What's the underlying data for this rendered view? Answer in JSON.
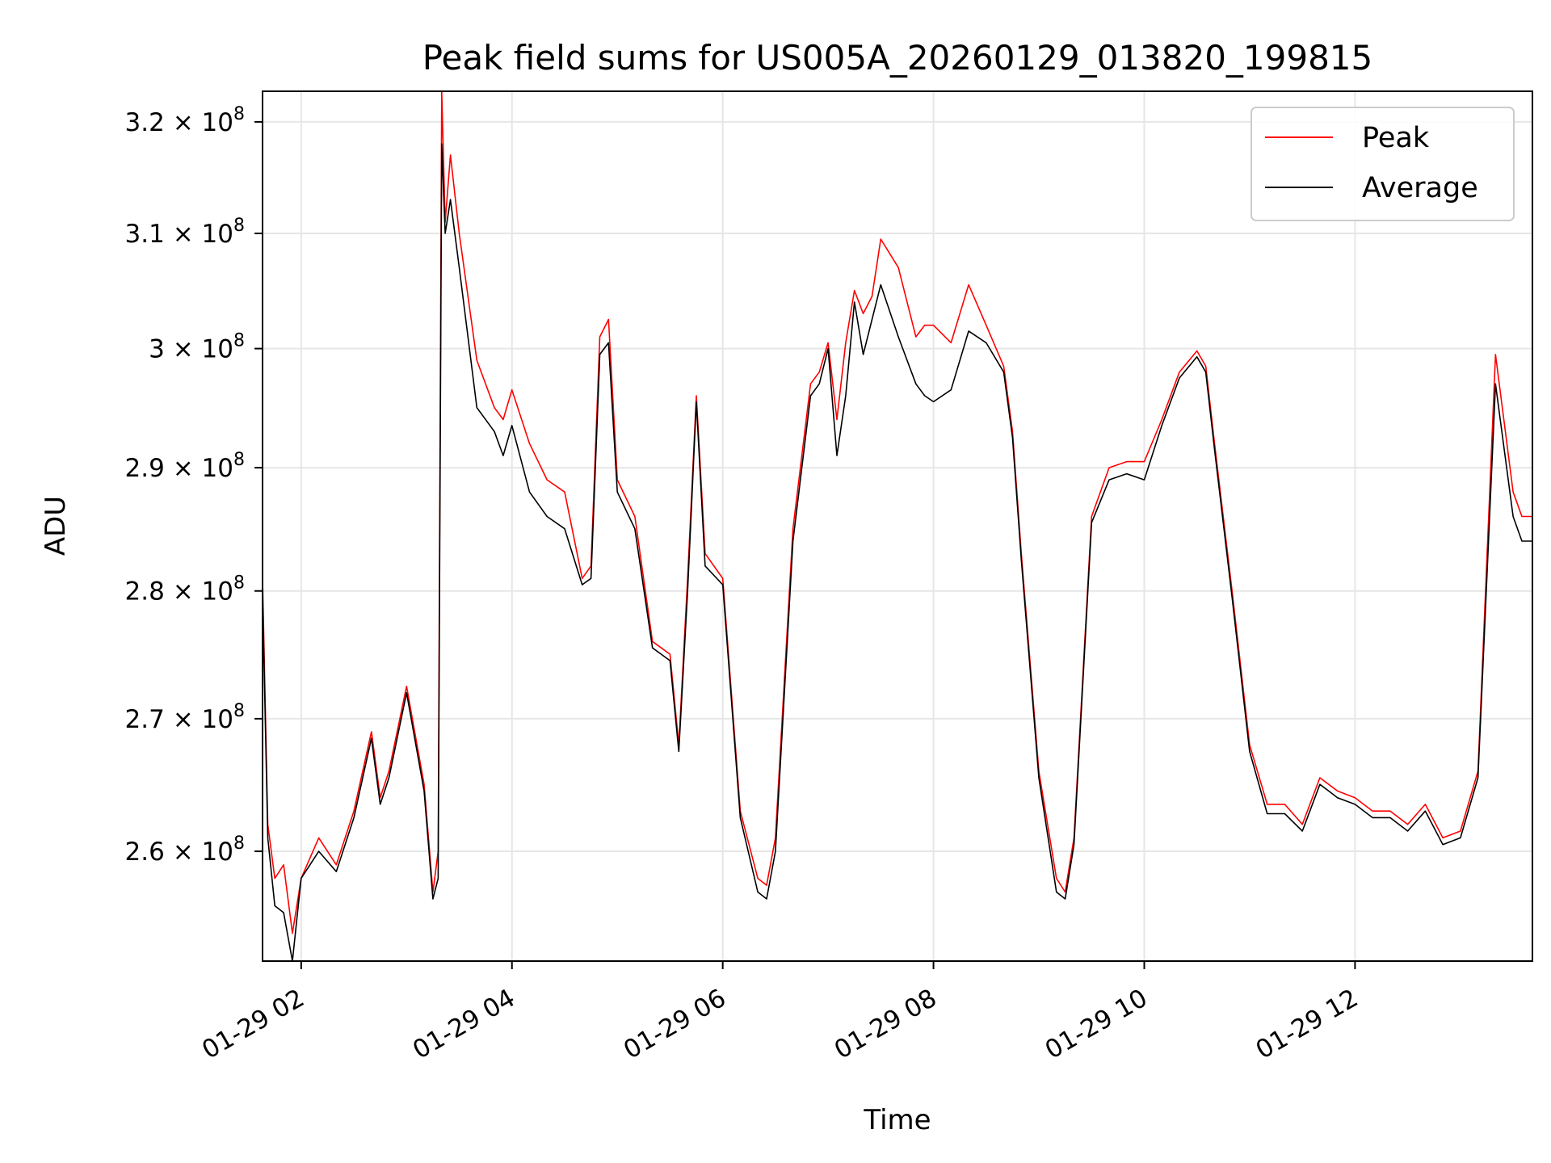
{
  "chart_data": {
    "type": "line",
    "title": "Peak field sums for US005A_20260129_013820_199815",
    "xlabel": "Time",
    "ylabel": "ADU",
    "y_scale": "log",
    "xlim": [
      "2026-01-29 01:38",
      "2026-01-29 13:41"
    ],
    "ylim": [
      252000000,
      322800000
    ],
    "grid": true,
    "legend_position": "top-right",
    "x_ticks": [
      {
        "value": "2026-01-29 02:00",
        "label": "01-29 02"
      },
      {
        "value": "2026-01-29 04:00",
        "label": "01-29 04"
      },
      {
        "value": "2026-01-29 06:00",
        "label": "01-29 06"
      },
      {
        "value": "2026-01-29 08:00",
        "label": "01-29 08"
      },
      {
        "value": "2026-01-29 10:00",
        "label": "01-29 10"
      },
      {
        "value": "2026-01-29 12:00",
        "label": "01-29 12"
      }
    ],
    "y_ticks": [
      {
        "value": 260000000,
        "mantissa": "2.6",
        "times": "×",
        "base": "10",
        "exp": "8"
      },
      {
        "value": 270000000,
        "mantissa": "2.7",
        "times": "×",
        "base": "10",
        "exp": "8"
      },
      {
        "value": 280000000,
        "mantissa": "2.8",
        "times": "×",
        "base": "10",
        "exp": "8"
      },
      {
        "value": 290000000,
        "mantissa": "2.9",
        "times": "×",
        "base": "10",
        "exp": "8"
      },
      {
        "value": 300000000,
        "mantissa": "3",
        "times": "×",
        "base": "10",
        "exp": "8"
      },
      {
        "value": 310000000,
        "mantissa": "3.1",
        "times": "×",
        "base": "10",
        "exp": "8"
      },
      {
        "value": 320000000,
        "mantissa": "3.2",
        "times": "×",
        "base": "10",
        "exp": "8"
      }
    ],
    "series": [
      {
        "name": "Peak",
        "color": "#ff0000",
        "x": [
          "2026-01-29 01:38",
          "2026-01-29 01:41",
          "2026-01-29 01:45",
          "2026-01-29 01:50",
          "2026-01-29 01:55",
          "2026-01-29 02:00",
          "2026-01-29 02:10",
          "2026-01-29 02:20",
          "2026-01-29 02:30",
          "2026-01-29 02:40",
          "2026-01-29 02:45",
          "2026-01-29 02:50",
          "2026-01-29 03:00",
          "2026-01-29 03:10",
          "2026-01-29 03:15",
          "2026-01-29 03:18",
          "2026-01-29 03:20",
          "2026-01-29 03:22",
          "2026-01-29 03:25",
          "2026-01-29 03:30",
          "2026-01-29 03:40",
          "2026-01-29 03:50",
          "2026-01-29 03:55",
          "2026-01-29 04:00",
          "2026-01-29 04:10",
          "2026-01-29 04:20",
          "2026-01-29 04:30",
          "2026-01-29 04:40",
          "2026-01-29 04:45",
          "2026-01-29 04:50",
          "2026-01-29 04:55",
          "2026-01-29 05:00",
          "2026-01-29 05:10",
          "2026-01-29 05:20",
          "2026-01-29 05:25",
          "2026-01-29 05:30",
          "2026-01-29 05:35",
          "2026-01-29 05:40",
          "2026-01-29 05:45",
          "2026-01-29 05:50",
          "2026-01-29 06:00",
          "2026-01-29 06:10",
          "2026-01-29 06:20",
          "2026-01-29 06:25",
          "2026-01-29 06:30",
          "2026-01-29 06:40",
          "2026-01-29 06:50",
          "2026-01-29 06:55",
          "2026-01-29 07:00",
          "2026-01-29 07:05",
          "2026-01-29 07:10",
          "2026-01-29 07:15",
          "2026-01-29 07:20",
          "2026-01-29 07:25",
          "2026-01-29 07:30",
          "2026-01-29 07:40",
          "2026-01-29 07:50",
          "2026-01-29 07:55",
          "2026-01-29 08:00",
          "2026-01-29 08:10",
          "2026-01-29 08:20",
          "2026-01-29 08:30",
          "2026-01-29 08:40",
          "2026-01-29 08:45",
          "2026-01-29 08:50",
          "2026-01-29 09:00",
          "2026-01-29 09:10",
          "2026-01-29 09:15",
          "2026-01-29 09:20",
          "2026-01-29 09:30",
          "2026-01-29 09:40",
          "2026-01-29 09:50",
          "2026-01-29 10:00",
          "2026-01-29 10:10",
          "2026-01-29 10:20",
          "2026-01-29 10:30",
          "2026-01-29 10:35",
          "2026-01-29 10:40",
          "2026-01-29 10:50",
          "2026-01-29 11:00",
          "2026-01-29 11:10",
          "2026-01-29 11:20",
          "2026-01-29 11:30",
          "2026-01-29 11:40",
          "2026-01-29 11:45",
          "2026-01-29 11:50",
          "2026-01-29 12:00",
          "2026-01-29 12:10",
          "2026-01-29 12:20",
          "2026-01-29 12:30",
          "2026-01-29 12:40",
          "2026-01-29 12:50",
          "2026-01-29 13:00",
          "2026-01-29 13:10",
          "2026-01-29 13:20",
          "2026-01-29 13:30",
          "2026-01-29 13:35",
          "2026-01-29 13:38",
          "2026-01-29 13:41"
        ],
        "y": [
          281000000,
          262000000,
          258000000,
          259000000,
          254000000,
          258000000,
          261000000,
          259000000,
          263000000,
          269000000,
          264000000,
          266000000,
          272500000,
          265000000,
          257000000,
          260000000,
          322800000,
          311000000,
          317000000,
          310000000,
          299000000,
          295000000,
          294000000,
          296500000,
          292000000,
          289000000,
          288000000,
          281000000,
          282000000,
          301000000,
          302500000,
          289000000,
          286000000,
          276000000,
          275500000,
          275000000,
          268000000,
          281000000,
          296000000,
          283000000,
          281000000,
          263000000,
          258000000,
          257500000,
          261000000,
          285000000,
          297000000,
          298000000,
          300500000,
          294000000,
          300500000,
          305000000,
          303000000,
          304500000,
          309500000,
          307000000,
          301000000,
          302000000,
          302000000,
          300500000,
          305500000,
          302000000,
          298500000,
          293000000,
          283000000,
          266000000,
          258000000,
          257000000,
          261000000,
          286000000,
          290000000,
          290500000,
          290500000,
          294000000,
          298000000,
          299800000,
          298500000,
          292000000,
          280000000,
          268000000,
          263500000,
          263500000,
          262000000,
          265500000,
          265000000,
          264500000,
          264000000,
          263000000,
          263000000,
          262000000,
          263500000,
          261000000,
          261500000,
          266000000,
          299500000,
          288000000,
          286000000,
          286000000,
          286000000
        ]
      },
      {
        "name": "Average",
        "color": "#000000",
        "x": [
          "2026-01-29 01:38",
          "2026-01-29 01:41",
          "2026-01-29 01:45",
          "2026-01-29 01:50",
          "2026-01-29 01:55",
          "2026-01-29 02:00",
          "2026-01-29 02:10",
          "2026-01-29 02:20",
          "2026-01-29 02:30",
          "2026-01-29 02:40",
          "2026-01-29 02:45",
          "2026-01-29 02:50",
          "2026-01-29 03:00",
          "2026-01-29 03:10",
          "2026-01-29 03:15",
          "2026-01-29 03:18",
          "2026-01-29 03:20",
          "2026-01-29 03:22",
          "2026-01-29 03:25",
          "2026-01-29 03:30",
          "2026-01-29 03:40",
          "2026-01-29 03:50",
          "2026-01-29 03:55",
          "2026-01-29 04:00",
          "2026-01-29 04:10",
          "2026-01-29 04:20",
          "2026-01-29 04:30",
          "2026-01-29 04:40",
          "2026-01-29 04:45",
          "2026-01-29 04:50",
          "2026-01-29 04:55",
          "2026-01-29 05:00",
          "2026-01-29 05:10",
          "2026-01-29 05:20",
          "2026-01-29 05:25",
          "2026-01-29 05:30",
          "2026-01-29 05:35",
          "2026-01-29 05:40",
          "2026-01-29 05:45",
          "2026-01-29 05:50",
          "2026-01-29 06:00",
          "2026-01-29 06:10",
          "2026-01-29 06:20",
          "2026-01-29 06:25",
          "2026-01-29 06:30",
          "2026-01-29 06:40",
          "2026-01-29 06:50",
          "2026-01-29 06:55",
          "2026-01-29 07:00",
          "2026-01-29 07:05",
          "2026-01-29 07:10",
          "2026-01-29 07:15",
          "2026-01-29 07:20",
          "2026-01-29 07:25",
          "2026-01-29 07:30",
          "2026-01-29 07:40",
          "2026-01-29 07:50",
          "2026-01-29 07:55",
          "2026-01-29 08:00",
          "2026-01-29 08:10",
          "2026-01-29 08:20",
          "2026-01-29 08:30",
          "2026-01-29 08:40",
          "2026-01-29 08:45",
          "2026-01-29 08:50",
          "2026-01-29 09:00",
          "2026-01-29 09:10",
          "2026-01-29 09:15",
          "2026-01-29 09:20",
          "2026-01-29 09:30",
          "2026-01-29 09:40",
          "2026-01-29 09:50",
          "2026-01-29 10:00",
          "2026-01-29 10:10",
          "2026-01-29 10:20",
          "2026-01-29 10:30",
          "2026-01-29 10:35",
          "2026-01-29 10:40",
          "2026-01-29 10:50",
          "2026-01-29 11:00",
          "2026-01-29 11:10",
          "2026-01-29 11:20",
          "2026-01-29 11:30",
          "2026-01-29 11:40",
          "2026-01-29 11:45",
          "2026-01-29 11:50",
          "2026-01-29 12:00",
          "2026-01-29 12:10",
          "2026-01-29 12:20",
          "2026-01-29 12:30",
          "2026-01-29 12:40",
          "2026-01-29 12:50",
          "2026-01-29 13:00",
          "2026-01-29 13:10",
          "2026-01-29 13:20",
          "2026-01-29 13:30",
          "2026-01-29 13:35",
          "2026-01-29 13:38",
          "2026-01-29 13:41"
        ],
        "y": [
          280000000,
          261000000,
          256000000,
          255500000,
          252000000,
          258000000,
          260000000,
          258500000,
          262500000,
          268500000,
          263500000,
          265500000,
          272000000,
          264500000,
          256500000,
          258000000,
          318000000,
          310000000,
          313000000,
          307000000,
          295000000,
          293000000,
          291000000,
          293500000,
          288000000,
          286000000,
          285000000,
          280500000,
          281000000,
          299500000,
          300500000,
          288000000,
          285000000,
          275500000,
          275000000,
          274500000,
          267500000,
          280000000,
          295500000,
          282000000,
          280500000,
          262500000,
          257000000,
          256500000,
          260000000,
          284000000,
          296000000,
          297000000,
          300000000,
          291000000,
          296000000,
          304000000,
          299500000,
          302500000,
          305500000,
          301000000,
          297000000,
          296000000,
          295500000,
          296500000,
          301500000,
          300500000,
          298000000,
          292500000,
          282500000,
          265500000,
          257000000,
          256500000,
          260500000,
          285500000,
          289000000,
          289500000,
          289000000,
          293500000,
          297500000,
          299300000,
          298000000,
          291500000,
          279500000,
          267500000,
          262800000,
          262800000,
          261500000,
          265000000,
          264500000,
          264000000,
          263500000,
          262500000,
          262500000,
          261500000,
          263000000,
          260500000,
          261000000,
          265500000,
          297000000,
          286000000,
          284000000,
          284000000,
          284000000
        ]
      }
    ]
  }
}
